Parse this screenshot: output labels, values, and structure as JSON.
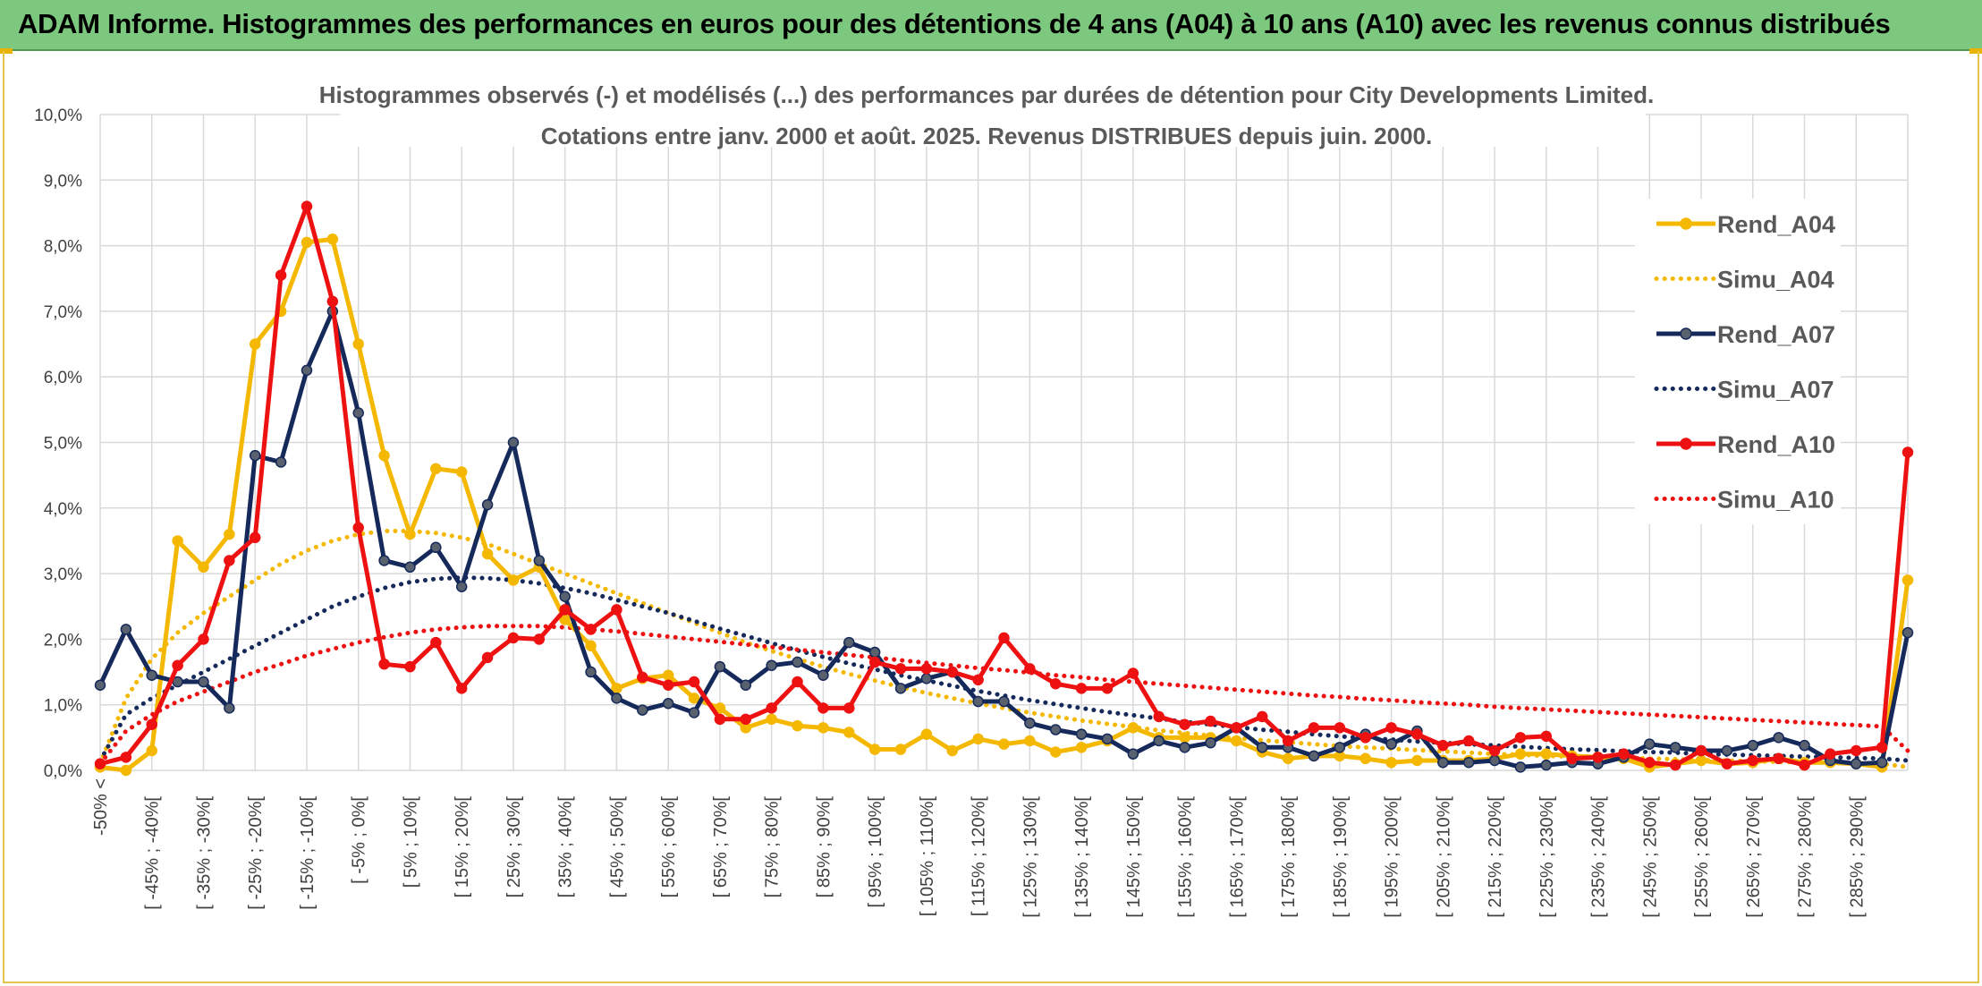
{
  "header": {
    "title": "ADAM Informe. Histogrammes des performances en euros pour des détentions de 4 ans (A04) à 10 ans (A10) avec les revenus connus distribués"
  },
  "chart_data": {
    "type": "line",
    "title": "Histogrammes observés (-) et modélisés (...) des performances par durées de détention pour City Developments Limited.",
    "subtitle": "Cotations entre janv. 2000 et août. 2025. Revenus DISTRIBUES depuis juin. 2000.",
    "xlabel": "",
    "ylabel": "",
    "ylim": [
      0,
      10
    ],
    "yticks": [
      "0,0%",
      "1,0%",
      "2,0%",
      "3,0%",
      "4,0%",
      "5,0%",
      "6,0%",
      "7,0%",
      "8,0%",
      "9,0%",
      "10,0%"
    ],
    "grid": true,
    "legend_position": "right",
    "categories": [
      "-50% <",
      "[ -50% ; -45%[",
      "[ -45% ; -40%[",
      "[ -40% ; -35%[",
      "[ -35% ; -30%[",
      "[ -30% ; -25%[",
      "[ -25% ; -20%[",
      "[ -20% ; -15%[",
      "[ -15% ; -10%[",
      "[ -10% ; -5%[",
      "[ -5% ; 0%[",
      "[ 0% ; 5%[",
      "[ 5% ; 10%[",
      "[ 10% ; 15%[",
      "[ 15% ; 20%[",
      "[ 20% ; 25%[",
      "[ 25% ; 30%[",
      "[ 30% ; 35%[",
      "[ 35% ; 40%[",
      "[ 40% ; 45%[",
      "[ 45% ; 50%[",
      "[ 50% ; 55%[",
      "[ 55% ; 60%[",
      "[ 60% ; 65%[",
      "[ 65% ; 70%[",
      "[ 70% ; 75%[",
      "[ 75% ; 80%[",
      "[ 80% ; 85%[",
      "[ 85% ; 90%[",
      "[ 90% ; 95%[",
      "[ 95% ; 100%[",
      "[ 100% ; 105%[",
      "[ 105% ; 110%[",
      "[ 110% ; 115%[",
      "[ 115% ; 120%[",
      "[ 120% ; 125%[",
      "[ 125% ; 130%[",
      "[ 130% ; 135%[",
      "[ 135% ; 140%[",
      "[ 140% ; 145%[",
      "[ 145% ; 150%[",
      "[ 150% ; 155%[",
      "[ 155% ; 160%[",
      "[ 160% ; 165%[",
      "[ 165% ; 170%[",
      "[ 170% ; 175%[",
      "[ 175% ; 180%[",
      "[ 180% ; 185%[",
      "[ 185% ; 190%[",
      "[ 190% ; 195%[",
      "[ 195% ; 200%[",
      "[ 200% ; 205%[",
      "[ 205% ; 210%[",
      "[ 210% ; 215%[",
      "[ 215% ; 220%[",
      "[ 220% ; 225%[",
      "[ 225% ; 230%[",
      "[ 230% ; 235%[",
      "[ 235% ; 240%[",
      "[ 240% ; 245%[",
      "[ 245% ; 250%[",
      "[ 250% ; 255%[",
      "[ 255% ; 260%[",
      "[ 260% ; 265%[",
      "[ 265% ; 270%[",
      "[ 270% ; 275%[",
      "[ 275% ; 280%[",
      "[ 280% ; 285%[",
      "[ 285% ; 290%[",
      "[ 290% ; 295%[",
      "295% >"
    ],
    "visible_tick_labels": [
      "-50% <",
      "[ -45% ; -40%[",
      "[ -35% ; -30%[",
      "[ -25% ; -20%[",
      "[ -15% ; -10%[",
      "[ -5% ; 0%[",
      "[ 5% ; 10%[",
      "[ 15% ; 20%[",
      "[ 25% ; 30%[",
      "[ 35% ; 40%[",
      "[ 45% ; 50%[",
      "[ 55% ; 60%[",
      "[ 65% ; 70%[",
      "[ 75% ; 80%[",
      "[ 85% ; 90%[",
      "[ 95% ; 100%[",
      "[ 105% ; 110%[",
      "[ 115% ; 120%[",
      "[ 125% ; 130%[",
      "[ 135% ; 140%[",
      "[ 145% ; 150%[",
      "[ 155% ; 160%[",
      "[ 165% ; 170%[",
      "[ 175% ; 180%[",
      "[ 185% ; 190%[",
      "[ 195% ; 200%[",
      "[ 205% ; 210%[",
      "[ 215% ; 220%[",
      "[ 225% ; 230%[",
      "[ 235% ; 240%[",
      "[ 245% ; 250%[",
      "[ 255% ; 260%[",
      "[ 265% ; 270%[",
      "[ 275% ; 280%[",
      "[ 285% ; 290%["
    ],
    "series": [
      {
        "name": "Rend_A04",
        "style": "solid",
        "markers": true,
        "color": "#f5b800",
        "values": [
          0.05,
          0.0,
          0.3,
          3.5,
          3.1,
          3.6,
          6.5,
          7.0,
          8.05,
          8.1,
          6.5,
          4.8,
          3.6,
          4.6,
          4.55,
          3.3,
          2.9,
          3.1,
          2.3,
          1.9,
          1.25,
          1.4,
          1.45,
          1.1,
          0.95,
          0.65,
          0.78,
          0.68,
          0.65,
          0.58,
          0.32,
          0.32,
          0.55,
          0.3,
          0.48,
          0.4,
          0.45,
          0.28,
          0.35,
          0.45,
          0.65,
          0.5,
          0.5,
          0.5,
          0.45,
          0.28,
          0.18,
          0.22,
          0.22,
          0.18,
          0.12,
          0.15,
          0.15,
          0.15,
          0.18,
          0.25,
          0.25,
          0.22,
          0.2,
          0.18,
          0.05,
          0.1,
          0.15,
          0.1,
          0.12,
          0.18,
          0.12,
          0.12,
          0.1,
          0.05,
          2.9
        ]
      },
      {
        "name": "Simu_A04",
        "style": "dotted",
        "markers": false,
        "color": "#f5b800",
        "values": [
          0.1,
          1.1,
          1.7,
          2.1,
          2.4,
          2.65,
          2.9,
          3.15,
          3.35,
          3.5,
          3.6,
          3.65,
          3.65,
          3.62,
          3.55,
          3.45,
          3.3,
          3.15,
          3.0,
          2.85,
          2.7,
          2.55,
          2.4,
          2.25,
          2.1,
          1.95,
          1.82,
          1.7,
          1.58,
          1.47,
          1.37,
          1.27,
          1.18,
          1.1,
          1.02,
          0.95,
          0.88,
          0.82,
          0.76,
          0.71,
          0.66,
          0.61,
          0.57,
          0.53,
          0.49,
          0.46,
          0.43,
          0.4,
          0.37,
          0.35,
          0.33,
          0.31,
          0.29,
          0.27,
          0.25,
          0.24,
          0.22,
          0.21,
          0.2,
          0.19,
          0.18,
          0.17,
          0.16,
          0.15,
          0.14,
          0.13,
          0.12,
          0.12,
          0.11,
          0.1,
          0.05
        ]
      },
      {
        "name": "Rend_A07",
        "style": "solid",
        "markers": true,
        "color": "#15295a",
        "values": [
          1.3,
          2.15,
          1.45,
          1.35,
          1.35,
          0.95,
          4.8,
          4.7,
          6.1,
          7.0,
          5.45,
          3.2,
          3.1,
          3.4,
          2.8,
          4.05,
          5.0,
          3.2,
          2.65,
          1.5,
          1.1,
          0.92,
          1.02,
          0.88,
          1.58,
          1.3,
          1.6,
          1.65,
          1.45,
          1.95,
          1.8,
          1.25,
          1.4,
          1.5,
          1.05,
          1.05,
          0.72,
          0.62,
          0.55,
          0.48,
          0.25,
          0.45,
          0.35,
          0.42,
          0.65,
          0.35,
          0.35,
          0.22,
          0.35,
          0.55,
          0.4,
          0.6,
          0.12,
          0.12,
          0.15,
          0.05,
          0.08,
          0.12,
          0.1,
          0.2,
          0.4,
          0.35,
          0.3,
          0.3,
          0.38,
          0.5,
          0.38,
          0.15,
          0.1,
          0.12,
          2.1
        ]
      },
      {
        "name": "Simu_A07",
        "style": "dotted",
        "markers": false,
        "color": "#15295a",
        "values": [
          0.15,
          0.85,
          1.1,
          1.3,
          1.5,
          1.7,
          1.9,
          2.1,
          2.3,
          2.5,
          2.65,
          2.78,
          2.87,
          2.92,
          2.94,
          2.93,
          2.9,
          2.85,
          2.78,
          2.7,
          2.6,
          2.5,
          2.4,
          2.28,
          2.16,
          2.05,
          1.94,
          1.83,
          1.73,
          1.63,
          1.54,
          1.45,
          1.37,
          1.29,
          1.21,
          1.14,
          1.07,
          1.01,
          0.95,
          0.89,
          0.84,
          0.79,
          0.74,
          0.7,
          0.66,
          0.62,
          0.59,
          0.55,
          0.52,
          0.49,
          0.47,
          0.44,
          0.42,
          0.4,
          0.38,
          0.36,
          0.34,
          0.32,
          0.31,
          0.29,
          0.28,
          0.27,
          0.25,
          0.24,
          0.23,
          0.22,
          0.21,
          0.2,
          0.19,
          0.18,
          0.15
        ]
      },
      {
        "name": "Rend_A10",
        "style": "solid",
        "markers": true,
        "color": "#ee1111",
        "values": [
          0.1,
          0.2,
          0.7,
          1.6,
          2.0,
          3.2,
          3.55,
          7.55,
          8.6,
          7.15,
          3.7,
          1.62,
          1.58,
          1.95,
          1.25,
          1.72,
          2.02,
          2.0,
          2.45,
          2.15,
          2.45,
          1.42,
          1.3,
          1.35,
          0.78,
          0.78,
          0.95,
          1.35,
          0.95,
          0.95,
          1.65,
          1.55,
          1.55,
          1.5,
          1.38,
          2.02,
          1.55,
          1.32,
          1.25,
          1.25,
          1.48,
          0.82,
          0.7,
          0.75,
          0.65,
          0.82,
          0.45,
          0.65,
          0.65,
          0.5,
          0.65,
          0.55,
          0.38,
          0.45,
          0.3,
          0.5,
          0.52,
          0.18,
          0.2,
          0.25,
          0.12,
          0.08,
          0.3,
          0.1,
          0.15,
          0.18,
          0.08,
          0.25,
          0.3,
          0.35,
          4.85
        ]
      },
      {
        "name": "Simu_A10",
        "style": "dotted",
        "markers": false,
        "color": "#ee1111",
        "values": [
          0.1,
          0.6,
          0.85,
          1.05,
          1.2,
          1.35,
          1.5,
          1.62,
          1.75,
          1.85,
          1.95,
          2.03,
          2.1,
          2.15,
          2.18,
          2.2,
          2.2,
          2.2,
          2.18,
          2.15,
          2.12,
          2.08,
          2.04,
          2.0,
          1.96,
          1.92,
          1.88,
          1.84,
          1.8,
          1.76,
          1.72,
          1.68,
          1.64,
          1.6,
          1.56,
          1.53,
          1.49,
          1.45,
          1.42,
          1.38,
          1.35,
          1.32,
          1.29,
          1.26,
          1.23,
          1.2,
          1.17,
          1.14,
          1.12,
          1.09,
          1.07,
          1.04,
          1.02,
          1.0,
          0.97,
          0.95,
          0.93,
          0.91,
          0.89,
          0.87,
          0.85,
          0.83,
          0.81,
          0.79,
          0.77,
          0.75,
          0.73,
          0.71,
          0.69,
          0.67,
          0.3
        ]
      }
    ]
  }
}
